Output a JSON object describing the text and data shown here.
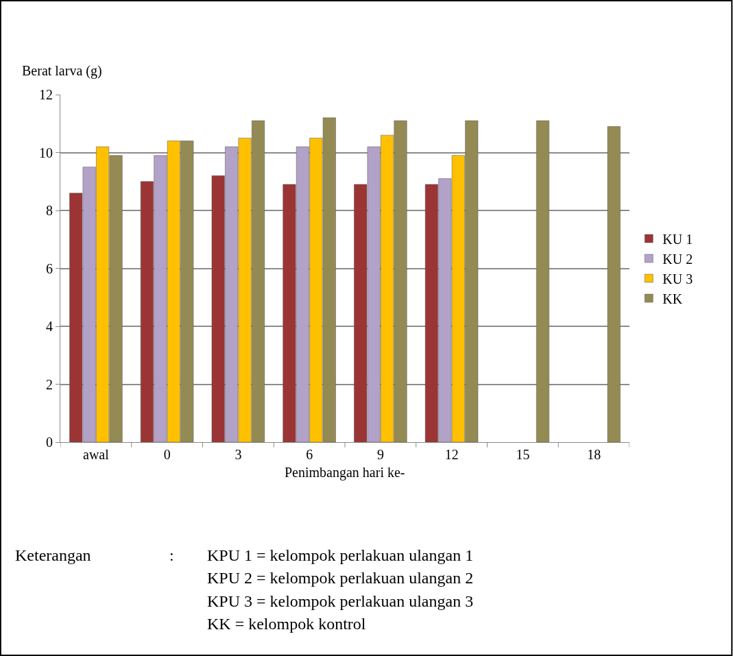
{
  "chart_data": {
    "type": "bar",
    "xlabel": "Penimbangan hari ke-",
    "ylabel": "Berat larva (g)",
    "categories": [
      "awal",
      "0",
      "3",
      "6",
      "9",
      "12",
      "15",
      "18"
    ],
    "series": [
      {
        "name": "KU 1",
        "color": "#9b3535",
        "values": [
          8.6,
          9.0,
          9.2,
          8.9,
          8.9,
          8.9,
          null,
          null
        ]
      },
      {
        "name": "KU 2",
        "color": "#b3a2c7",
        "values": [
          9.5,
          9.9,
          10.2,
          10.2,
          10.2,
          9.1,
          null,
          null
        ]
      },
      {
        "name": "KU 3",
        "color": "#ffc000",
        "values": [
          10.2,
          10.4,
          10.5,
          10.5,
          10.6,
          9.9,
          null,
          null
        ]
      },
      {
        "name": "KK",
        "color": "#948a54",
        "values": [
          9.9,
          10.4,
          11.1,
          11.2,
          11.1,
          11.1,
          11.1,
          10.9
        ]
      }
    ],
    "ylim": [
      0,
      12
    ],
    "yticks": [
      0,
      2,
      4,
      6,
      8,
      10,
      12
    ],
    "grid": "y",
    "legend": "right",
    "annotations": [
      "Keterangan",
      ":",
      "KPU 1 = kelompok perlakuan ulangan 1",
      "KPU 2 = kelompok perlakuan ulangan 2",
      "KPU 3 = kelompok perlakuan ulangan 3",
      "KK = kelompok kontrol"
    ]
  }
}
